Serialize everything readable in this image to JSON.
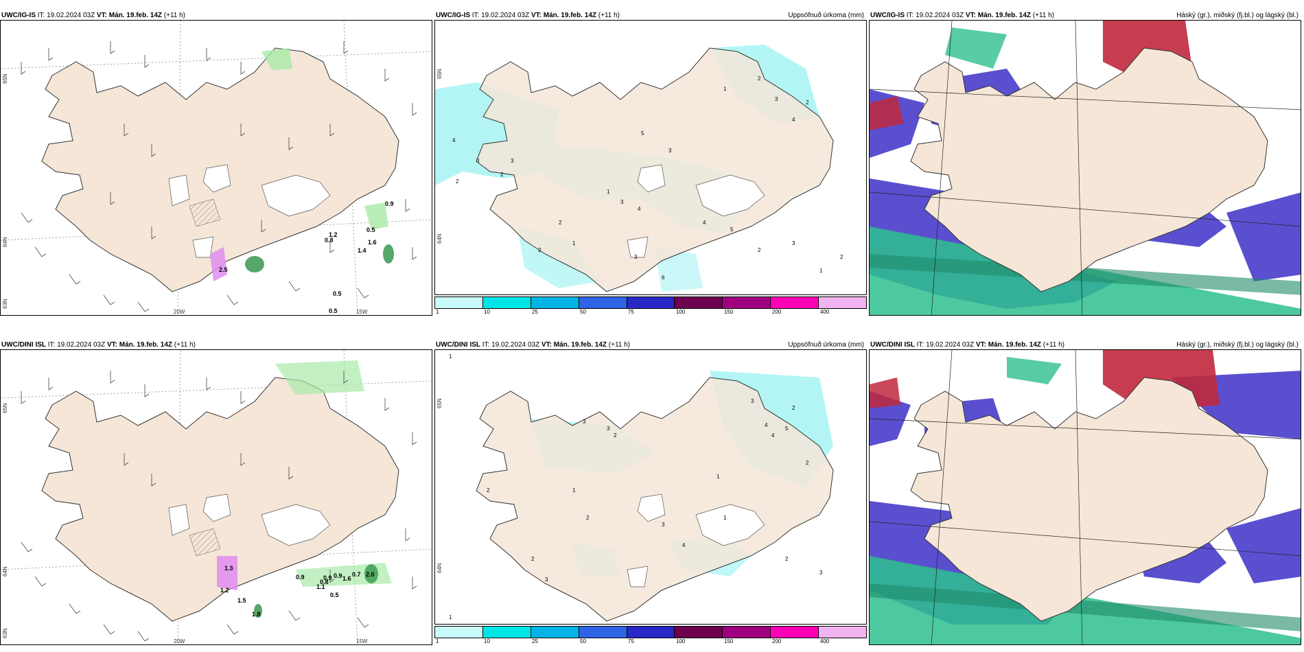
{
  "colors": {
    "land": "#f5e6d8",
    "coast": "#333333",
    "ice": "#ffffff",
    "precip_light": "#b3f5f5",
    "cloud_low": "#5a4fcf",
    "cloud_high": "#c0283c",
    "cloud_mid": "#2ebf8e",
    "green_precip": "#a8eaa8",
    "green_dark": "#1f8a3a",
    "purple_precip": "#e08cf0"
  },
  "panels": [
    {
      "id": "ig-wind",
      "header": {
        "model": "UWC/IG-IS",
        "it_label": "IT:",
        "it_value": "19.02.2024 03Z",
        "vt_label": "VT:",
        "vt_value": "Mán. 19.feb. 14Z",
        "lead": "(+11 h)"
      },
      "title_right": "",
      "axis_labels": {
        "lon": [
          "20W",
          "15W"
        ],
        "lat": [
          "65N",
          "64N",
          "63N"
        ]
      },
      "marks": [
        "0.9",
        "0.5",
        "1.2",
        "0.8",
        "1.6",
        "1.4",
        "0.5",
        "0.5",
        "2.5"
      ]
    },
    {
      "id": "ig-precip",
      "header": {
        "model": "UWC/IG-IS",
        "it_label": "IT:",
        "it_value": "19.02.2024 03Z",
        "vt_label": "VT:",
        "vt_value": "Mán. 19.feb. 14Z",
        "lead": "(+11 h)"
      },
      "title_right": "Uppsöfnuð úrkoma (mm)",
      "axis_labels": {
        "lat": [
          "65N",
          "64N"
        ]
      },
      "marks": [
        "2",
        "3",
        "4",
        "2",
        "3",
        "5",
        "3",
        "1",
        "2",
        "3",
        "4",
        "2",
        "1",
        "3",
        "4",
        "2",
        "1",
        "2",
        "3",
        "4",
        "5",
        "6",
        "2",
        "3",
        "1",
        "2"
      ]
    },
    {
      "id": "ig-cloud",
      "header": {
        "model": "UWC/IG-IS",
        "it_label": "IT:",
        "it_value": "19.02.2024 03Z",
        "vt_label": "VT:",
        "vt_value": "Mán. 19.feb. 14Z",
        "lead": "(+11 h)"
      },
      "title_right": "Háský (gr.), miðský (fj.bl.) og lágský (bl.)",
      "marks": []
    },
    {
      "id": "dini-wind",
      "header": {
        "model": "UWC/DINI ISL",
        "it_label": "IT:",
        "it_value": "19.02.2024 03Z",
        "vt_label": "VT:",
        "vt_value": "Mán. 19.feb. 14Z",
        "lead": "(+11 h)"
      },
      "title_right": "",
      "axis_labels": {
        "lon": [
          "20W",
          "15W"
        ],
        "lat": [
          "65N",
          "64N",
          "63N"
        ]
      },
      "marks": [
        "0.9",
        "0.9",
        "0.8",
        "0.9",
        "1.1",
        "0.5",
        "1.6",
        "0.7",
        "2.0",
        "1.3",
        "1.2",
        "1.5",
        "1.8"
      ]
    },
    {
      "id": "dini-precip",
      "header": {
        "model": "UWC/DINI ISL",
        "it_label": "IT:",
        "it_value": "19.02.2024 03Z",
        "vt_label": "VT:",
        "vt_value": "Mán. 19.feb. 14Z",
        "lead": "(+11 h)"
      },
      "title_right": "Uppsöfnuð úrkoma (mm)",
      "axis_labels": {
        "lat": [
          "65N",
          "64N"
        ]
      },
      "marks": [
        "1",
        "2",
        "3",
        "4",
        "2",
        "3",
        "1",
        "2",
        "3",
        "4",
        "5",
        "2",
        "1",
        "3",
        "2",
        "4",
        "1",
        "2",
        "3",
        "1",
        "2",
        "3"
      ]
    },
    {
      "id": "dini-cloud",
      "header": {
        "model": "UWC/DINI ISL",
        "it_label": "IT:",
        "it_value": "19.02.2024 03Z",
        "vt_label": "VT:",
        "vt_value": "Mán. 19.feb. 14Z",
        "lead": "(+11 h)"
      },
      "title_right": "Háský (gr.), miðský (fj.bl.) og lágský (bl.)",
      "marks": []
    }
  ],
  "colorbar": {
    "colors": [
      "#c8fafa",
      "#00e6e6",
      "#00b4e6",
      "#2f64e6",
      "#2828c8",
      "#6e0050",
      "#a00080",
      "#ff00b4",
      "#f0b4f0"
    ],
    "ticks": [
      "1",
      "10",
      "25",
      "50",
      "75",
      "100",
      "150",
      "200",
      "400"
    ]
  }
}
